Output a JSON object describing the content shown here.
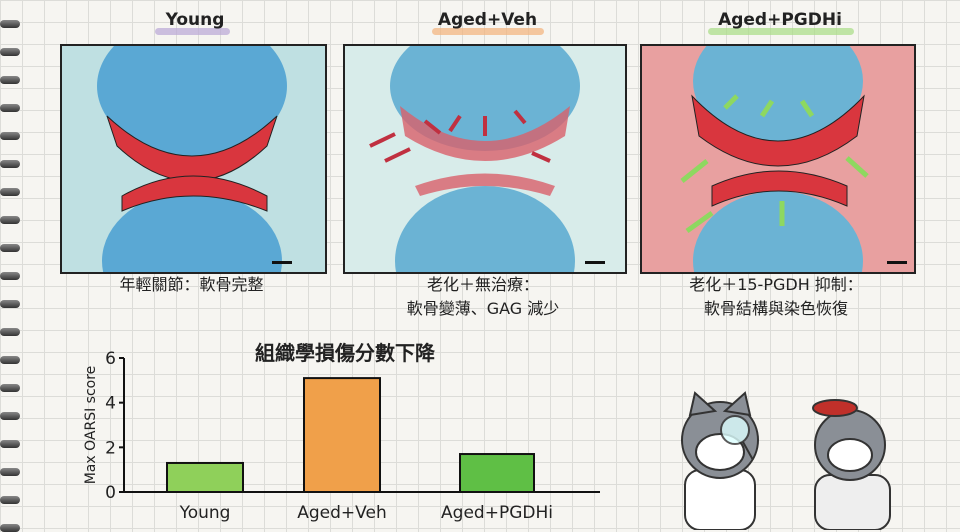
{
  "panels": [
    {
      "title": "Young",
      "caption": [
        "年輕關節：軟骨完整"
      ],
      "highlight": "#b9a6d6"
    },
    {
      "title": "Aged+Veh",
      "caption": [
        "老化＋無治療：",
        "軟骨變薄、GAG 減少"
      ],
      "highlight": "#f3b27a"
    },
    {
      "title": "Aged+PGDHi",
      "caption": [
        "老化＋15-PGDH 抑制：",
        "軟骨結構與染色恢復"
      ],
      "highlight": "#a8dd84"
    }
  ],
  "colors": {
    "cartilage": "#d9363e",
    "bone": "#4f9fd0",
    "green": "#7cc84a",
    "orange": "#f0a14a"
  },
  "chart_data": {
    "type": "bar",
    "title": "組織學損傷分數下降",
    "ylabel": "Max OARSI score",
    "xlabel": "",
    "categories": [
      "Young",
      "Aged+Veh",
      "Aged+PGDHi"
    ],
    "values": [
      1.3,
      5.1,
      1.7
    ],
    "bar_colors": [
      "#8fd05a",
      "#f0a04a",
      "#5fbf45"
    ],
    "ylim": [
      0,
      6
    ],
    "yticks": [
      0,
      2,
      4,
      6
    ],
    "grid": false
  }
}
